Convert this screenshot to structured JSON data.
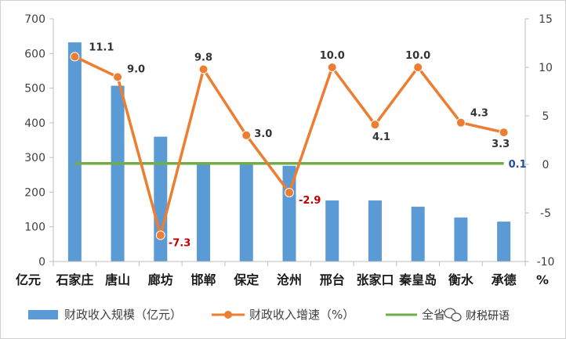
{
  "chart_data": {
    "type": "bar+line",
    "categories": [
      "石家庄",
      "唐山",
      "廊坊",
      "邯郸",
      "保定",
      "沧州",
      "邢台",
      "张家口",
      "秦皇岛",
      "衡水",
      "承德"
    ],
    "bars": {
      "name": "财政收入规模（亿元）",
      "values": [
        632,
        507,
        360,
        285,
        284,
        276,
        176,
        176,
        158,
        127,
        115
      ],
      "color": "#5b9bd5"
    },
    "line": {
      "name": "财政收入增速（%）",
      "values": [
        11.1,
        9.0,
        -7.3,
        9.8,
        3.0,
        -2.9,
        10.0,
        4.1,
        10.0,
        4.3,
        3.3
      ],
      "labels": [
        "11.1",
        "9.0",
        "-7.3",
        "9.8",
        "3.0",
        "-2.9",
        "10.0",
        "4.1",
        "10.0",
        "4.3",
        "3.3"
      ],
      "color": "#ed7d31",
      "negative_label_color": "#c00000",
      "positive_label_color": "#333333"
    },
    "reference": {
      "name": "全省平均增速",
      "legend_visible_text": "全省",
      "value": 0.1,
      "label": "0.1",
      "color": "#70ad47",
      "label_color": "#1f4e9e"
    },
    "left_axis": {
      "range": [
        0,
        700
      ],
      "ticks": [
        "0",
        "100",
        "200",
        "300",
        "400",
        "500",
        "600",
        "700"
      ],
      "unit": "亿元"
    },
    "right_axis": {
      "range": [
        -10,
        15
      ],
      "ticks": [
        "-10",
        "-5",
        "0",
        "5",
        "10",
        "15"
      ],
      "unit": "%"
    },
    "grid": false,
    "legend_position": "bottom"
  },
  "watermark": {
    "text": "财税研语",
    "icon": "wechat-icon"
  }
}
